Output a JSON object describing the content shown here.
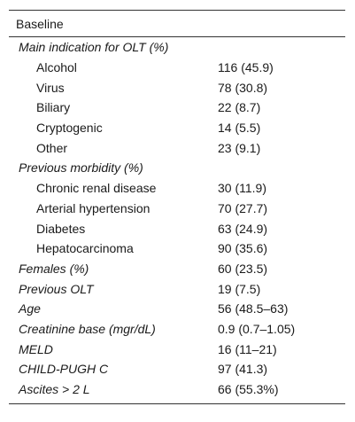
{
  "table": {
    "header": "Baseline",
    "rows": [
      {
        "label": "Main indication for OLT (%)",
        "value": "",
        "kind": "section"
      },
      {
        "label": "Alcohol",
        "value": "116 (45.9)",
        "kind": "sub"
      },
      {
        "label": "Virus",
        "value": "78 (30.8)",
        "kind": "sub"
      },
      {
        "label": "Biliary",
        "value": "22 (8.7)",
        "kind": "sub"
      },
      {
        "label": "Cryptogenic",
        "value": "14 (5.5)",
        "kind": "sub"
      },
      {
        "label": "Other",
        "value": "23 (9.1)",
        "kind": "sub"
      },
      {
        "label": "Previous morbidity (%)",
        "value": "",
        "kind": "section"
      },
      {
        "label": "Chronic renal disease",
        "value": "30 (11.9)",
        "kind": "sub"
      },
      {
        "label": "Arterial hypertension",
        "value": "70 (27.7)",
        "kind": "sub"
      },
      {
        "label": "Diabetes",
        "value": "63 (24.9)",
        "kind": "sub"
      },
      {
        "label": "Hepatocarcinoma",
        "value": "90 (35.6)",
        "kind": "sub"
      },
      {
        "label": "Females (%)",
        "value": "60 (23.5)",
        "kind": "italic"
      },
      {
        "label": "Previous OLT",
        "value": "19 (7.5)",
        "kind": "italic"
      },
      {
        "label": "Age",
        "value": "56 (48.5–63)",
        "kind": "italic"
      },
      {
        "label": "Creatinine base (mgr/dL)",
        "value": "0.9 (0.7–1.05)",
        "kind": "italic"
      },
      {
        "label": "MELD",
        "value": "16 (11–21)",
        "kind": "italic"
      },
      {
        "label": "CHILD-PUGH C",
        "value": "97 (41.3)",
        "kind": "italic"
      },
      {
        "label": "Ascites    >    2    L",
        "value": "66 (55.3%)",
        "kind": "italic"
      }
    ]
  }
}
